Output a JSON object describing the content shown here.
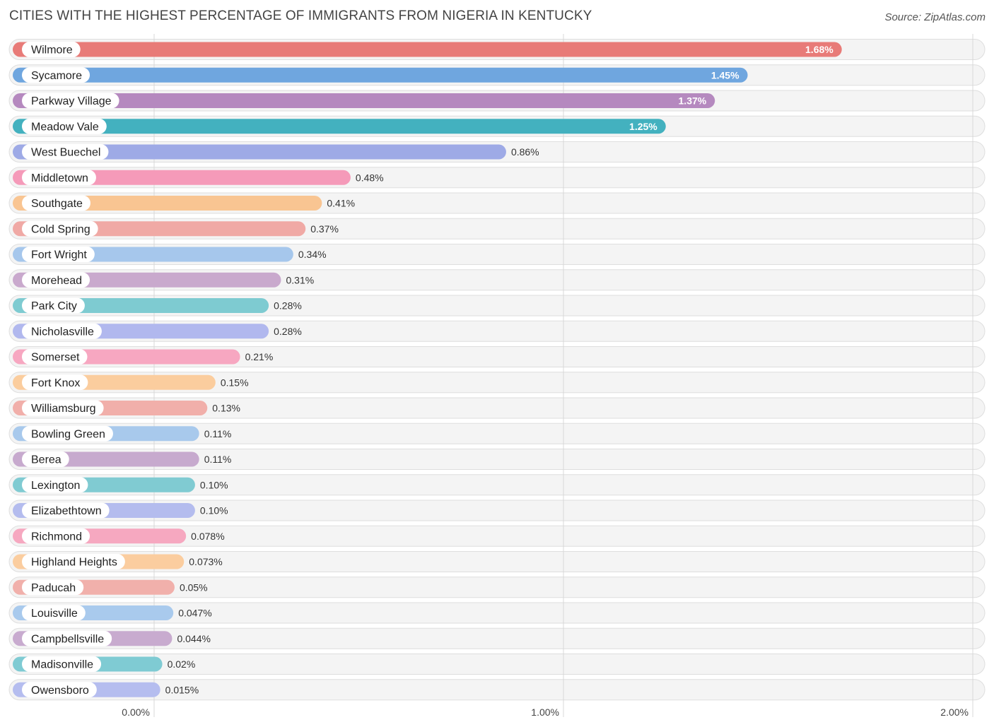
{
  "header": {
    "title": "CITIES WITH THE HIGHEST PERCENTAGE OF IMMIGRANTS FROM NIGERIA IN KENTUCKY",
    "source": "Source: ZipAtlas.com"
  },
  "chart_data": {
    "type": "bar",
    "orientation": "horizontal",
    "title": "CITIES WITH THE HIGHEST PERCENTAGE OF IMMIGRANTS FROM NIGERIA IN KENTUCKY",
    "xlabel": "",
    "ylabel": "",
    "xlim": [
      0,
      2.0
    ],
    "ticks": [
      0,
      1.0,
      2.0
    ],
    "tick_labels": [
      "0.00%",
      "1.00%",
      "2.00%"
    ],
    "grid": true,
    "categories": [
      "Wilmore",
      "Sycamore",
      "Parkway Village",
      "Meadow Vale",
      "West Buechel",
      "Middletown",
      "Southgate",
      "Cold Spring",
      "Fort Wright",
      "Morehead",
      "Park City",
      "Nicholasville",
      "Somerset",
      "Fort Knox",
      "Williamsburg",
      "Bowling Green",
      "Berea",
      "Lexington",
      "Elizabethtown",
      "Richmond",
      "Highland Heights",
      "Paducah",
      "Louisville",
      "Campbellsville",
      "Madisonville",
      "Owensboro"
    ],
    "values": [
      1.68,
      1.45,
      1.37,
      1.25,
      0.86,
      0.48,
      0.41,
      0.37,
      0.34,
      0.31,
      0.28,
      0.28,
      0.21,
      0.15,
      0.13,
      0.11,
      0.11,
      0.1,
      0.1,
      0.078,
      0.073,
      0.05,
      0.047,
      0.044,
      0.02,
      0.015
    ],
    "value_labels": [
      "1.68%",
      "1.45%",
      "1.37%",
      "1.25%",
      "0.86%",
      "0.48%",
      "0.41%",
      "0.37%",
      "0.34%",
      "0.31%",
      "0.28%",
      "0.28%",
      "0.21%",
      "0.15%",
      "0.13%",
      "0.11%",
      "0.11%",
      "0.10%",
      "0.10%",
      "0.078%",
      "0.073%",
      "0.05%",
      "0.047%",
      "0.044%",
      "0.02%",
      "0.015%"
    ],
    "colors": [
      "#e87b78",
      "#6fa6df",
      "#b589bf",
      "#43b1bf",
      "#9eaae6",
      "#f59ab9",
      "#f9c592",
      "#f0a9a5",
      "#a6c7ec",
      "#c9a9cd",
      "#7ecbd1",
      "#b1b8ee",
      "#f7a7c1",
      "#fbcd9e",
      "#f1afaa",
      "#a8c9ec",
      "#c7aace",
      "#80cbd2",
      "#b4bcee",
      "#f6a8c0",
      "#fbcd9f",
      "#f1b0ab",
      "#a9caed",
      "#c8abcf",
      "#7fcbd3",
      "#b5bdef"
    ]
  }
}
